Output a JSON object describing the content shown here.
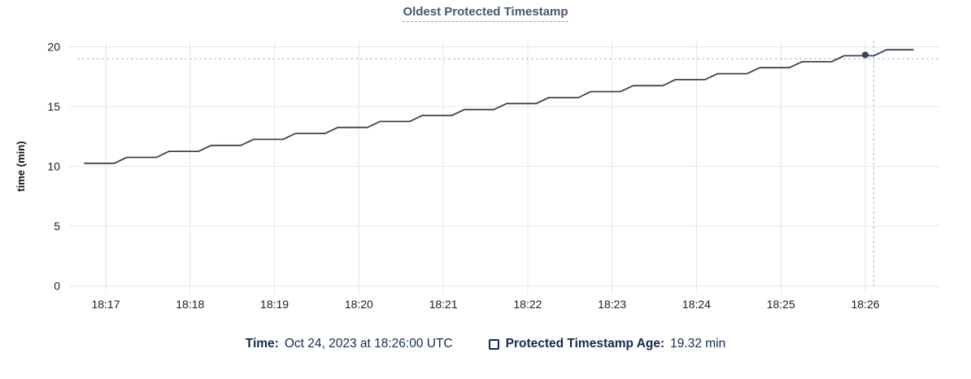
{
  "title": "Oldest Protected Timestamp",
  "colors": {
    "line": "#394455",
    "grid": "#e6e6e6",
    "cursor": "#a9bccb",
    "axis_text": "#1c1c1c",
    "axis_title_text": "#111111",
    "legend_text": "#152a4d",
    "title_text": "#475872"
  },
  "chart_data": {
    "type": "line",
    "title": "Oldest Protected Timestamp",
    "xlabel": "",
    "ylabel": "time (min)",
    "ylim": [
      0,
      20
    ],
    "y_ticks": [
      0,
      5,
      10,
      15,
      20
    ],
    "x_ticks": [
      "18:17",
      "18:18",
      "18:19",
      "18:20",
      "18:21",
      "18:22",
      "18:23",
      "18:24",
      "18:25",
      "18:26"
    ],
    "grid": true,
    "legend_position": "bottom",
    "series": [
      {
        "name": "Protected Timestamp Age",
        "points": [
          [
            "18:16:45",
            10.25
          ],
          [
            "18:17:06",
            10.25
          ],
          [
            "18:17:15",
            10.75
          ],
          [
            "18:17:36",
            10.75
          ],
          [
            "18:17:45",
            11.25
          ],
          [
            "18:18:06",
            11.25
          ],
          [
            "18:18:15",
            11.75
          ],
          [
            "18:18:36",
            11.75
          ],
          [
            "18:18:45",
            12.25
          ],
          [
            "18:19:06",
            12.25
          ],
          [
            "18:19:15",
            12.75
          ],
          [
            "18:19:36",
            12.75
          ],
          [
            "18:19:45",
            13.25
          ],
          [
            "18:20:06",
            13.25
          ],
          [
            "18:20:15",
            13.75
          ],
          [
            "18:20:36",
            13.75
          ],
          [
            "18:20:45",
            14.25
          ],
          [
            "18:21:06",
            14.25
          ],
          [
            "18:21:15",
            14.75
          ],
          [
            "18:21:36",
            14.75
          ],
          [
            "18:21:45",
            15.25
          ],
          [
            "18:22:06",
            15.25
          ],
          [
            "18:22:15",
            15.75
          ],
          [
            "18:22:36",
            15.75
          ],
          [
            "18:22:45",
            16.25
          ],
          [
            "18:23:06",
            16.25
          ],
          [
            "18:23:15",
            16.75
          ],
          [
            "18:23:36",
            16.75
          ],
          [
            "18:23:45",
            17.25
          ],
          [
            "18:24:06",
            17.25
          ],
          [
            "18:24:15",
            17.75
          ],
          [
            "18:24:36",
            17.75
          ],
          [
            "18:24:45",
            18.25
          ],
          [
            "18:25:06",
            18.25
          ],
          [
            "18:25:15",
            18.75
          ],
          [
            "18:25:36",
            18.75
          ],
          [
            "18:25:45",
            19.25
          ],
          [
            "18:26:06",
            19.25
          ],
          [
            "18:26:15",
            19.75
          ],
          [
            "18:26:34",
            19.75
          ]
        ]
      }
    ],
    "hover_point": {
      "time": "18:26:00",
      "value": 19.32
    },
    "cursor": {
      "time": "18:26:06",
      "value": 19.0
    }
  },
  "legend": {
    "time_label": "Time:",
    "time_value": "Oct 24, 2023 at 18:26:00 UTC",
    "series_label": "Protected Timestamp Age:",
    "series_value": "19.32 min"
  }
}
